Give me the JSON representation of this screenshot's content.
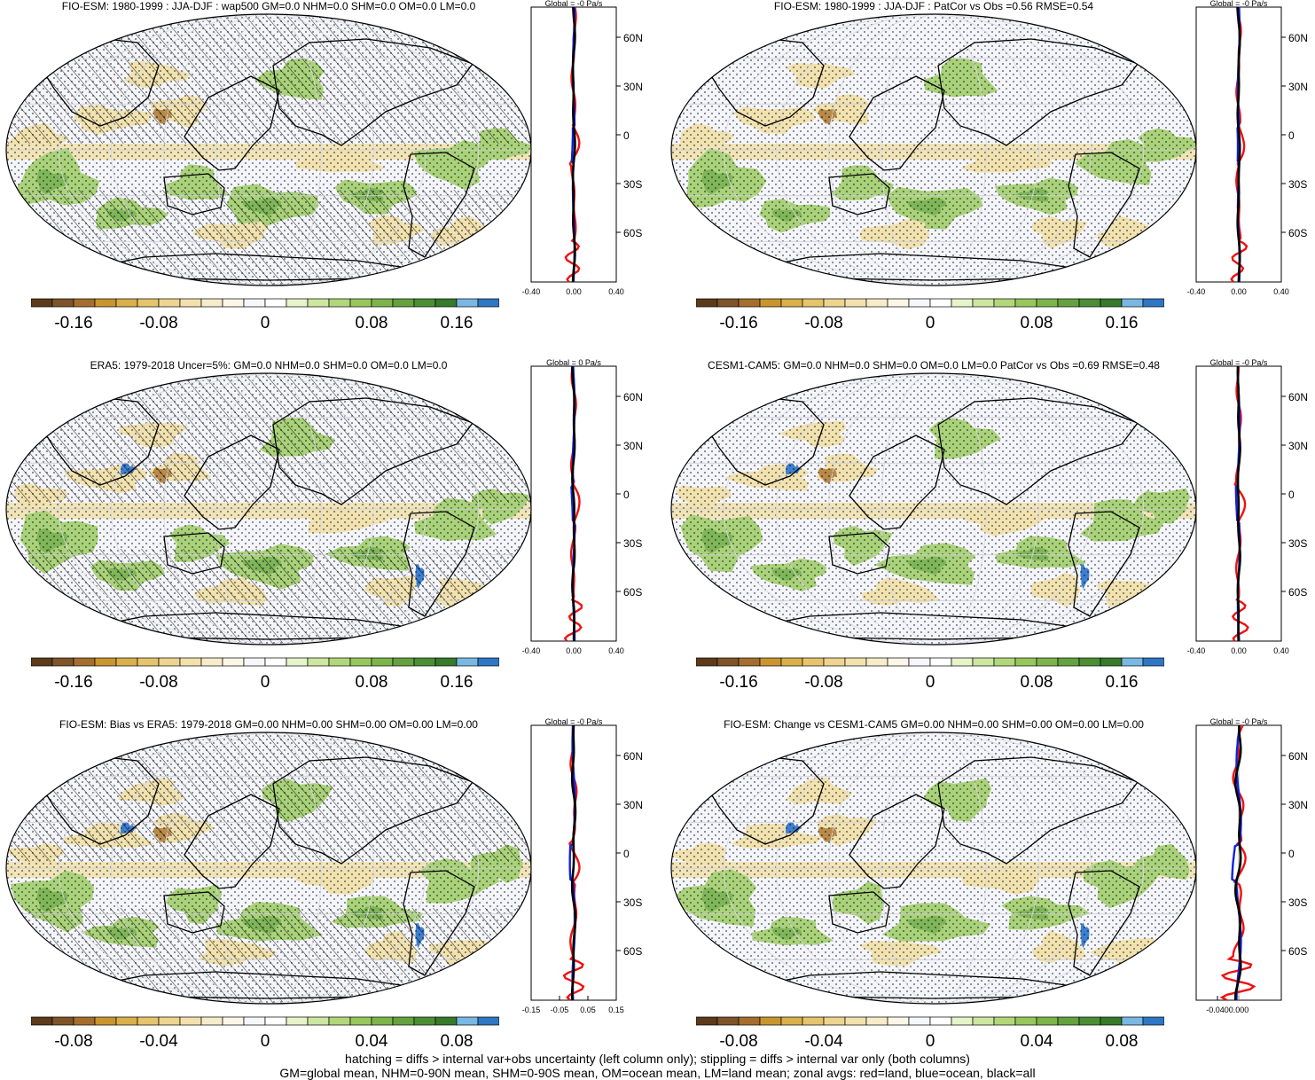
{
  "colorbar_colors": [
    "#5c3a1a",
    "#7f5428",
    "#a56e2e",
    "#c9952f",
    "#d9b04a",
    "#e6c46c",
    "#eed48f",
    "#f2e1ad",
    "#f6ecca",
    "#fbf6e6",
    "#f6f7fb",
    "#ffffff",
    "#e7f3c9",
    "#cde6a0",
    "#b2d77a",
    "#97c75b",
    "#7db54a",
    "#64a23f",
    "#4c8e34",
    "#377a2a",
    "#78b8e3",
    "#2f76c4"
  ],
  "map_colors": {
    "ocean_bg": "#f4f5fa",
    "green": "#a9d27a",
    "dgreen": "#5d9e3e",
    "tan": "#f1e2b0",
    "brown": "#b98a4a",
    "blue": "#3d7fd0"
  },
  "line_colors": {
    "land": "#ee1111",
    "ocean": "#1122dd",
    "all": "#000000"
  },
  "zonal_lat_labels": [
    "60N",
    "30N",
    "0",
    "30S",
    "60S"
  ],
  "panels": [
    {
      "title": "FIO-ESM: 1980-1999 : JJA-DJF : wap500 GM=0.0 NHM=0.0 SHM=0.0 OM=0.0 LM=0.0",
      "hatched": true,
      "colorbar_labels": [
        "-0.16",
        "-0.08",
        "0",
        "0.08",
        "0.16"
      ],
      "zonal_title": "Global = -0 Pa/s",
      "zonal_xticks": [
        "-0.40",
        "0.00",
        "0.40"
      ],
      "zonal_amp": 1.0
    },
    {
      "title": "FIO-ESM: 1980-1999 : JJA-DJF : PatCor vs Obs =0.56 RMSE=0.54",
      "hatched": false,
      "colorbar_labels": [
        "-0.16",
        "-0.08",
        "0",
        "0.08",
        "0.16"
      ],
      "zonal_title": "Global = -0 Pa/s",
      "zonal_xticks": [
        "-0.40",
        "0.00",
        "0.40"
      ],
      "zonal_amp": 1.0
    },
    {
      "title": "ERA5: 1979-2018 Uncer=5%: GM=0.0 NHM=0.0 SHM=0.0 OM=0.0 LM=0.0",
      "hatched": true,
      "colorbar_labels": [
        "-0.16",
        "-0.08",
        "0",
        "0.08",
        "0.16"
      ],
      "zonal_title": "Global = 0 Pa/s",
      "zonal_xticks": [
        "-0.40",
        "0.00",
        "0.40"
      ],
      "zonal_amp": 1.1
    },
    {
      "title": "CESM1-CAM5: GM=0.0 NHM=0.0 SHM=0.0 OM=0.0 LM=0.0 PatCor vs Obs =0.69 RMSE=0.48",
      "hatched": false,
      "colorbar_labels": [
        "-0.16",
        "-0.08",
        "0",
        "0.08",
        "0.16"
      ],
      "zonal_title": "Global = -0 Pa/s",
      "zonal_xticks": [
        "-0.40",
        "0.00",
        "0.40"
      ],
      "zonal_amp": 1.1
    },
    {
      "title": "FIO-ESM: Bias vs ERA5: 1979-2018 GM=0.00 NHM=0.00 SHM=0.00 OM=0.00 LM=0.00",
      "hatched": true,
      "colorbar_labels": [
        "-0.08",
        "-0.04",
        "0",
        "0.04",
        "0.08"
      ],
      "zonal_title": "Global = -0 Pa/s",
      "zonal_xticks": [
        "-0.15",
        "-0.05",
        "0.05",
        "0.15"
      ],
      "zonal_amp": 1.5
    },
    {
      "title": "FIO-ESM: Change vs CESM1-CAM5 GM=0.00 NHM=0.00 SHM=0.00 OM=0.00 LM=0.00",
      "hatched": false,
      "colorbar_labels": [
        "-0.08",
        "-0.04",
        "0",
        "0.04",
        "0.08"
      ],
      "zonal_title": "Global = -0 Pa/s",
      "zonal_xticks": [
        "-0.040",
        "0.000"
      ],
      "zonal_amp": 2.6
    }
  ],
  "footer": {
    "line1": "hatching = diffs > internal var+obs uncertainty (left column only); stippling = diffs > internal var only (both columns)",
    "line2": "GM=global mean, NHM=0-90N mean, SHM=0-90S mean, OM=ocean mean, LM=land mean; zonal avgs: red=land, blue=ocean, black=all"
  }
}
